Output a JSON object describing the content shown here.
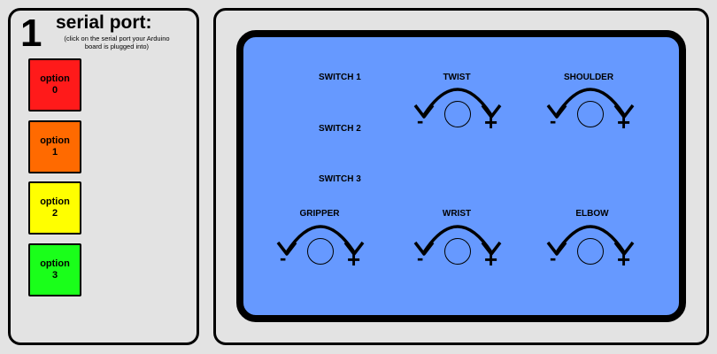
{
  "left_panel": {
    "step_number": "1",
    "title": "serial port:",
    "hint": "(click on the serial port your Arduino board is plugged into)",
    "options": [
      {
        "line1": "option",
        "line2": "0",
        "color": "#ff1a1a"
      },
      {
        "line1": "option",
        "line2": "1",
        "color": "#ff6a00"
      },
      {
        "line1": "option",
        "line2": "2",
        "color": "#ffff00"
      },
      {
        "line1": "option",
        "line2": "3",
        "color": "#1aff1a"
      }
    ]
  },
  "control_screen": {
    "background_color": "#6699ff",
    "switches": [
      "SWITCH 1",
      "SWITCH 2",
      "SWITCH 3"
    ],
    "dials": [
      {
        "label": "TWIST",
        "minus": "-",
        "plus": "+"
      },
      {
        "label": "SHOULDER",
        "minus": "-",
        "plus": "+"
      },
      {
        "label": "GRIPPER",
        "minus": "-",
        "plus": "+"
      },
      {
        "label": "WRIST",
        "minus": "-",
        "plus": "+"
      },
      {
        "label": "ELBOW",
        "minus": "-",
        "plus": "+"
      }
    ]
  }
}
